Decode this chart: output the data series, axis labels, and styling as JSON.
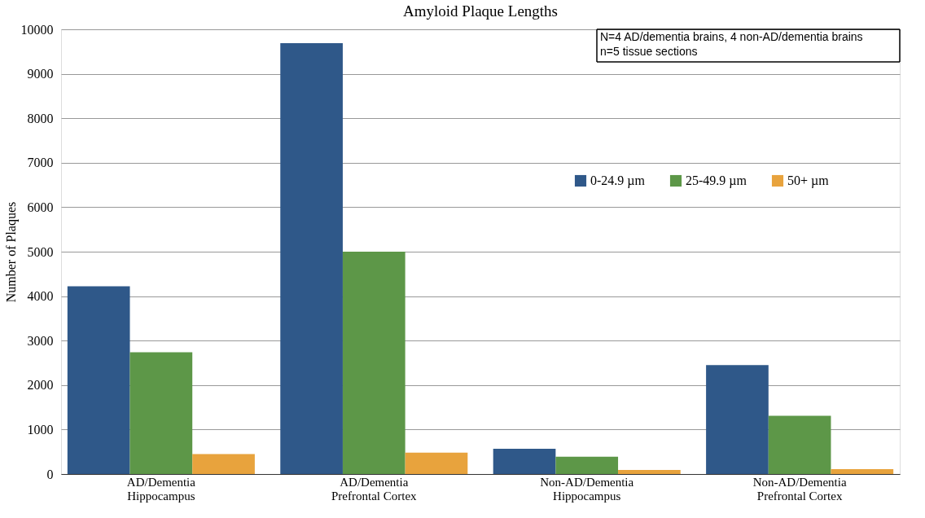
{
  "chart_data": {
    "type": "bar",
    "title": "Amyloid Plaque Lengths",
    "ylabel": "Number of Plaques",
    "categories": [
      "AD/Dementia Hippocampus",
      "AD/Dementia Prefrontal Cortex",
      "Non-AD/Dementia Hippocampus",
      "Non-AD/Dementia Prefrontal Cortex"
    ],
    "series": [
      {
        "name": "0-24.9 µm",
        "color": "#2f5889",
        "values": [
          4220,
          9690,
          570,
          2450
        ]
      },
      {
        "name": "25-49.9 µm",
        "color": "#5d9748",
        "values": [
          2740,
          5000,
          390,
          1310
        ]
      },
      {
        "name": "50+ µm",
        "color": "#e8a33d",
        "values": [
          450,
          480,
          90,
          110
        ]
      }
    ],
    "ylim": [
      0,
      10000
    ],
    "yticks": [
      0,
      1000,
      2000,
      3000,
      4000,
      5000,
      6000,
      7000,
      8000,
      9000,
      10000
    ],
    "grid": "y",
    "legend": "top right",
    "annotations": [
      "N=4 AD/dementia brains, 4 non-AD/dementia brains\nn=5 tissue sections"
    ]
  }
}
